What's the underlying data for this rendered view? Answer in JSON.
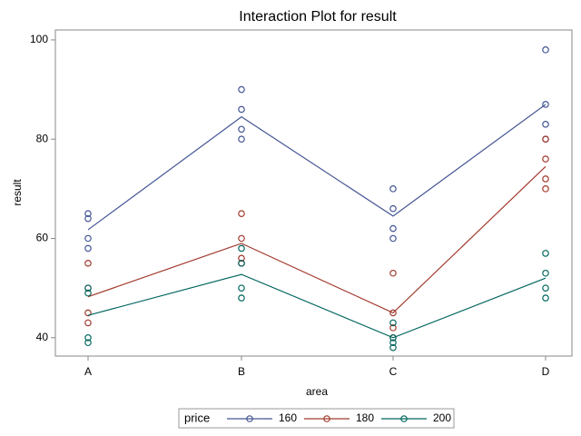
{
  "chart_data": {
    "type": "interaction",
    "title": "Interaction Plot for result",
    "x_label": "area",
    "y_label": "result",
    "categories": [
      "A",
      "B",
      "C",
      "D"
    ],
    "ylim": [
      36.3,
      102
    ],
    "yticks": [
      40,
      60,
      80,
      100
    ],
    "legend_title": "price",
    "legend_position": "bottom",
    "series": [
      {
        "name": "160",
        "color": "#445694",
        "values": [
          61.75,
          84.5,
          64.5,
          87
        ],
        "points": [
          [
            65,
            64,
            60,
            58
          ],
          [
            90,
            86,
            82,
            80
          ],
          [
            70,
            66,
            62,
            60
          ],
          [
            98,
            87,
            83,
            80
          ]
        ]
      },
      {
        "name": "180",
        "color": "#A23A2E",
        "values": [
          48.25,
          59,
          45,
          74.5
        ],
        "points": [
          [
            55,
            50,
            45,
            43
          ],
          [
            65,
            60,
            56,
            55
          ],
          [
            53,
            45,
            42,
            40
          ],
          [
            80,
            76,
            72,
            70
          ]
        ]
      },
      {
        "name": "200",
        "color": "#01665E",
        "values": [
          44.5,
          52.75,
          40,
          52
        ],
        "points": [
          [
            50,
            49,
            40,
            39
          ],
          [
            58,
            55,
            50,
            48
          ],
          [
            43,
            40,
            39,
            38
          ],
          [
            57,
            53,
            50,
            48
          ]
        ]
      }
    ]
  }
}
